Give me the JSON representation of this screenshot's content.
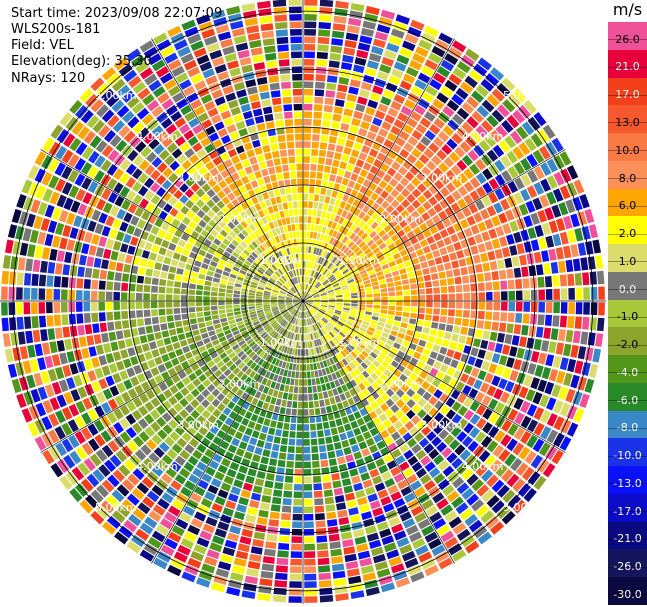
{
  "header": {
    "start_time": "Start time: 2023/09/08 22:07:09",
    "instrument": "WLS200s-181",
    "field": "Field: VEL",
    "elevation": "Elevation(deg): 35.30",
    "nrays": "NRays: 120"
  },
  "colorbar": {
    "unit": "m/s",
    "levels": [
      {
        "label": "26.0",
        "color": "#f0509a"
      },
      {
        "label": "21.0",
        "color": "#e8003a"
      },
      {
        "label": "17.0",
        "color": "#f33f1a"
      },
      {
        "label": "13.0",
        "color": "#f8582e"
      },
      {
        "label": "10.0",
        "color": "#fa7a46"
      },
      {
        "label": "8.0",
        "color": "#fc9058"
      },
      {
        "label": "6.0",
        "color": "#ffa500"
      },
      {
        "label": "2.0",
        "color": "#ffff00"
      },
      {
        "label": "1.0",
        "color": "#dcdc6a"
      },
      {
        "label": "0.0",
        "color": "#777777"
      },
      {
        "label": "-1.0",
        "color": "#a8c83a"
      },
      {
        "label": "-2.0",
        "color": "#8ea42c"
      },
      {
        "label": "-4.0",
        "color": "#52961a"
      },
      {
        "label": "-6.0",
        "color": "#2a8a2a"
      },
      {
        "label": "-8.0",
        "color": "#3a88c8"
      },
      {
        "label": "-10.0",
        "color": "#1a32e8"
      },
      {
        "label": "-13.0",
        "color": "#0a10f8"
      },
      {
        "label": "-17.0",
        "color": "#0b0bc8"
      },
      {
        "label": "-21.0",
        "color": "#0a0a80"
      },
      {
        "label": "-26.0",
        "color": "#15155e"
      },
      {
        "label": "-30.0",
        "color": "#0a0a40"
      }
    ]
  },
  "range_rings": [
    {
      "label": "1.00km",
      "km": 1
    },
    {
      "label": "2.00km",
      "km": 2
    },
    {
      "label": "3.00km",
      "km": 3
    },
    {
      "label": "4.00km",
      "km": 4
    },
    {
      "label": "5.00km",
      "km": 5
    }
  ],
  "scan": {
    "rays": 120,
    "gates": 40,
    "max_range_km": 5.2
  }
}
